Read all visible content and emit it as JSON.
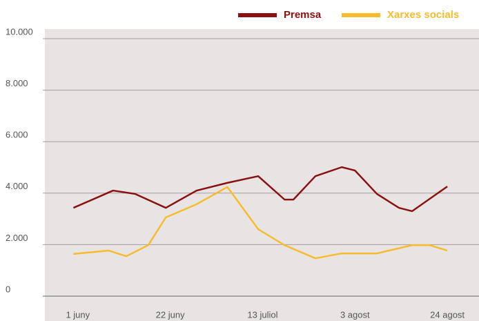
{
  "chart_data": {
    "type": "line",
    "xlim": [
      -7.5,
      91.2
    ],
    "xticks": [
      {
        "value": 0,
        "label": "1 juny"
      },
      {
        "value": 21,
        "label": "22 juny"
      },
      {
        "value": 42,
        "label": "13 juliol"
      },
      {
        "value": 63,
        "label": "3 agost"
      },
      {
        "value": 84,
        "label": "24 agost"
      }
    ],
    "ylim": [
      0,
      10000
    ],
    "yticks": [
      0,
      {
        "value": 2000,
        "label": "2.000"
      },
      {
        "value": 4000,
        "label": "4.000"
      },
      {
        "value": 6000,
        "label": "6.000"
      },
      {
        "value": 8000,
        "label": "8.000"
      },
      {
        "value": 10000,
        "label": "10.000"
      }
    ],
    "grid": true,
    "legend": "top-right",
    "series": [
      {
        "name": "Premsa",
        "color": "#8b1111",
        "x": [
          -1,
          8,
          13,
          20,
          27,
          34,
          41,
          47,
          49,
          54,
          60,
          63,
          68,
          73,
          76,
          84
        ],
        "values": [
          3430,
          4100,
          3970,
          3430,
          4100,
          4400,
          4660,
          3750,
          3750,
          4660,
          5010,
          4880,
          3970,
          3430,
          3300,
          4260
        ]
      },
      {
        "name": "Xarxes socials",
        "color": "#f7bb2e",
        "x": [
          -1,
          7,
          11,
          16,
          20,
          27,
          34,
          41,
          47,
          54,
          60,
          68,
          76,
          80,
          84
        ],
        "values": [
          1640,
          1770,
          1550,
          1980,
          3060,
          3570,
          4240,
          2600,
          1980,
          1470,
          1660,
          1660,
          1980,
          1980,
          1770
        ]
      }
    ]
  }
}
